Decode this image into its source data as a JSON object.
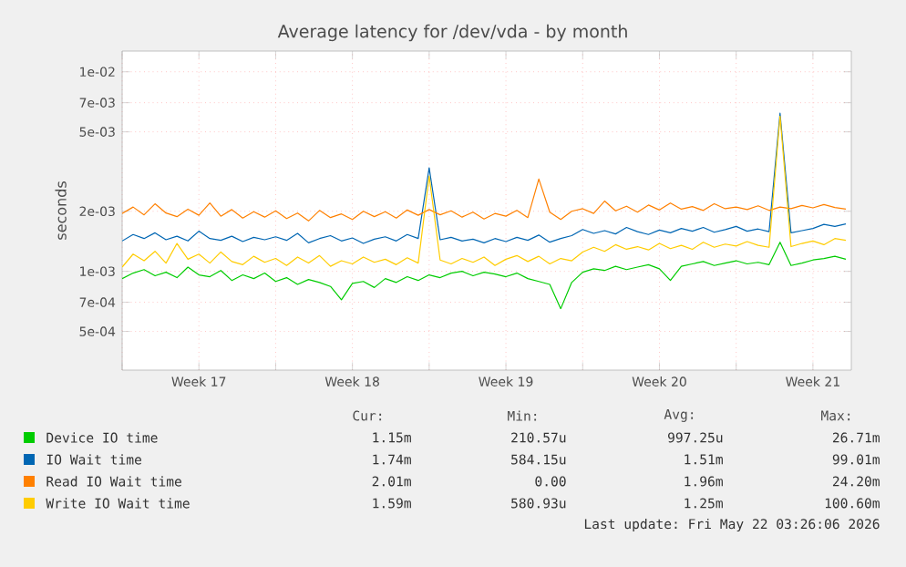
{
  "chart_data": {
    "type": "line",
    "title": "Average latency for /dev/vda - by month",
    "ylabel": "seconds",
    "log": "y",
    "grid": true,
    "legend": "bottom",
    "x": [
      "2026-04-20T00:00",
      "2026-04-20T12:00",
      "2026-04-21T00:00",
      "2026-04-21T12:00",
      "2026-04-22T00:00",
      "2026-04-22T12:00",
      "2026-04-23T00:00",
      "2026-04-23T12:00",
      "2026-04-24T00:00",
      "2026-04-24T12:00",
      "2026-04-25T00:00",
      "2026-04-25T12:00",
      "2026-04-26T00:00",
      "2026-04-26T12:00",
      "2026-04-27T00:00",
      "2026-04-27T12:00",
      "2026-04-28T00:00",
      "2026-04-28T12:00",
      "2026-04-29T00:00",
      "2026-04-29T12:00",
      "2026-04-30T00:00",
      "2026-04-30T12:00",
      "2026-05-01T00:00",
      "2026-05-01T12:00",
      "2026-05-02T00:00",
      "2026-05-02T12:00",
      "2026-05-03T00:00",
      "2026-05-03T12:00",
      "2026-05-04T00:00",
      "2026-05-04T12:00",
      "2026-05-05T00:00",
      "2026-05-05T12:00",
      "2026-05-06T00:00",
      "2026-05-06T12:00",
      "2026-05-07T00:00",
      "2026-05-07T12:00",
      "2026-05-08T00:00",
      "2026-05-08T12:00",
      "2026-05-09T00:00",
      "2026-05-09T12:00",
      "2026-05-10T00:00",
      "2026-05-10T12:00",
      "2026-05-11T00:00",
      "2026-05-11T12:00",
      "2026-05-12T00:00",
      "2026-05-12T12:00",
      "2026-05-13T00:00",
      "2026-05-13T12:00",
      "2026-05-14T00:00",
      "2026-05-14T12:00",
      "2026-05-15T00:00",
      "2026-05-15T12:00",
      "2026-05-16T00:00",
      "2026-05-16T12:00",
      "2026-05-17T00:00",
      "2026-05-17T12:00",
      "2026-05-18T00:00",
      "2026-05-18T12:00",
      "2026-05-19T00:00",
      "2026-05-19T12:00",
      "2026-05-20T00:00",
      "2026-05-20T12:00",
      "2026-05-21T00:00",
      "2026-05-21T12:00",
      "2026-05-22T00:00",
      "2026-05-22T12:00",
      "2026-05-23T00:00"
    ],
    "xlim": [
      "2026-04-20T00:00",
      "2026-05-23T06:00"
    ],
    "xticks": [
      {
        "value": "2026-04-20T00:00",
        "label": null
      },
      {
        "value": "2026-04-23T12:00",
        "label": "Week 17"
      },
      {
        "value": "2026-04-27T00:00",
        "label": null
      },
      {
        "value": "2026-04-30T12:00",
        "label": "Week 18"
      },
      {
        "value": "2026-05-04T00:00",
        "label": null
      },
      {
        "value": "2026-05-07T12:00",
        "label": "Week 19"
      },
      {
        "value": "2026-05-11T00:00",
        "label": null
      },
      {
        "value": "2026-05-14T12:00",
        "label": "Week 20"
      },
      {
        "value": "2026-05-18T00:00",
        "label": null
      },
      {
        "value": "2026-05-21T12:00",
        "label": "Week 21"
      }
    ],
    "ylim": [
      0.00032,
      0.0127
    ],
    "yticks": [
      {
        "value": 0.0005,
        "label": "5e-04"
      },
      {
        "value": 0.0007,
        "label": "7e-04"
      },
      {
        "value": 0.001,
        "label": "1e-03"
      },
      {
        "value": 0.002,
        "label": "2e-03"
      },
      {
        "value": 0.005,
        "label": "5e-03"
      },
      {
        "value": 0.007,
        "label": "7e-03"
      },
      {
        "value": 0.01,
        "label": "1e-02"
      }
    ],
    "series": [
      {
        "name": "Device IO time",
        "color": "#00cc00",
        "values": [
          0.00092,
          0.00098,
          0.00102,
          0.00095,
          0.00099,
          0.00093,
          0.00105,
          0.00096,
          0.00094,
          0.00101,
          0.0009,
          0.00096,
          0.00092,
          0.00098,
          0.00089,
          0.00093,
          0.00086,
          0.00091,
          0.00088,
          0.00084,
          0.00072,
          0.00087,
          0.00089,
          0.00083,
          0.00092,
          0.00088,
          0.00094,
          0.0009,
          0.00096,
          0.00093,
          0.00098,
          0.001,
          0.00095,
          0.00099,
          0.00097,
          0.00094,
          0.00098,
          0.00092,
          0.00089,
          0.00086,
          0.00065,
          0.00088,
          0.00099,
          0.00103,
          0.00101,
          0.00106,
          0.00102,
          0.00105,
          0.00108,
          0.00103,
          0.0009,
          0.00106,
          0.00109,
          0.00112,
          0.00107,
          0.0011,
          0.00113,
          0.00109,
          0.00111,
          0.00108,
          0.0014,
          0.00107,
          0.0011,
          0.00114,
          0.00116,
          0.00119,
          0.00115
        ]
      },
      {
        "name": "IO Wait time",
        "color": "#0066b3",
        "values": [
          0.00142,
          0.00153,
          0.00146,
          0.00156,
          0.00144,
          0.0015,
          0.00142,
          0.00159,
          0.00146,
          0.00143,
          0.0015,
          0.00141,
          0.00148,
          0.00144,
          0.00149,
          0.00143,
          0.00155,
          0.00139,
          0.00146,
          0.00151,
          0.00142,
          0.00147,
          0.00138,
          0.00145,
          0.00149,
          0.00142,
          0.00153,
          0.00146,
          0.0033,
          0.00144,
          0.00148,
          0.00142,
          0.00145,
          0.00139,
          0.00146,
          0.00141,
          0.00148,
          0.00143,
          0.00152,
          0.0014,
          0.00146,
          0.00151,
          0.00162,
          0.00155,
          0.0016,
          0.00154,
          0.00166,
          0.00158,
          0.00153,
          0.00161,
          0.00156,
          0.00164,
          0.00159,
          0.00166,
          0.00157,
          0.00162,
          0.00168,
          0.00159,
          0.00163,
          0.00158,
          0.0062,
          0.00156,
          0.0016,
          0.00164,
          0.00172,
          0.00168,
          0.00173
        ]
      },
      {
        "name": "Read IO Wait time",
        "color": "#ff8000",
        "values": [
          0.00195,
          0.0021,
          0.00192,
          0.00218,
          0.00196,
          0.00188,
          0.00205,
          0.00191,
          0.0022,
          0.00189,
          0.00204,
          0.00185,
          0.00199,
          0.00187,
          0.00201,
          0.00184,
          0.00196,
          0.00179,
          0.00202,
          0.00186,
          0.00194,
          0.00182,
          0.002,
          0.00188,
          0.00199,
          0.00185,
          0.00203,
          0.00191,
          0.00204,
          0.00192,
          0.00201,
          0.00187,
          0.00198,
          0.00183,
          0.00195,
          0.00189,
          0.00202,
          0.00186,
          0.0029,
          0.00198,
          0.00182,
          0.002,
          0.00206,
          0.00195,
          0.00225,
          0.00201,
          0.00212,
          0.00198,
          0.00215,
          0.00203,
          0.0022,
          0.00205,
          0.00211,
          0.00202,
          0.00218,
          0.00206,
          0.0021,
          0.00204,
          0.00213,
          0.00202,
          0.0021,
          0.00206,
          0.00214,
          0.00208,
          0.00216,
          0.00209,
          0.00205
        ]
      },
      {
        "name": "Write IO Wait time",
        "color": "#ffcc00",
        "values": [
          0.00105,
          0.00122,
          0.00113,
          0.00126,
          0.0011,
          0.00138,
          0.00115,
          0.00122,
          0.0011,
          0.00125,
          0.00112,
          0.00108,
          0.00119,
          0.00111,
          0.00116,
          0.00107,
          0.00118,
          0.0011,
          0.0012,
          0.00106,
          0.00113,
          0.00109,
          0.00118,
          0.00111,
          0.00115,
          0.00108,
          0.00117,
          0.0011,
          0.003,
          0.00114,
          0.00109,
          0.00116,
          0.00111,
          0.00118,
          0.00107,
          0.00115,
          0.0012,
          0.00112,
          0.00119,
          0.00109,
          0.00116,
          0.00113,
          0.00125,
          0.00132,
          0.00126,
          0.00136,
          0.00129,
          0.00133,
          0.00128,
          0.00138,
          0.0013,
          0.00135,
          0.00129,
          0.0014,
          0.00132,
          0.00137,
          0.00134,
          0.00141,
          0.00135,
          0.00132,
          0.006,
          0.00133,
          0.00138,
          0.00142,
          0.00136,
          0.00146,
          0.00143
        ]
      }
    ],
    "annotations": [
      "Cur:",
      "Min:",
      "Avg:",
      "Max:",
      "1.15m",
      "210.57u",
      "997.25u",
      "26.71m",
      "1.74m",
      "584.15u",
      "1.51m",
      "99.01m",
      "2.01m",
      "0.00",
      "1.96m",
      "24.20m",
      "1.59m",
      "580.93u",
      "1.25m",
      "100.60m",
      "Last update: Fri May 22 03:26:06 2026"
    ]
  }
}
